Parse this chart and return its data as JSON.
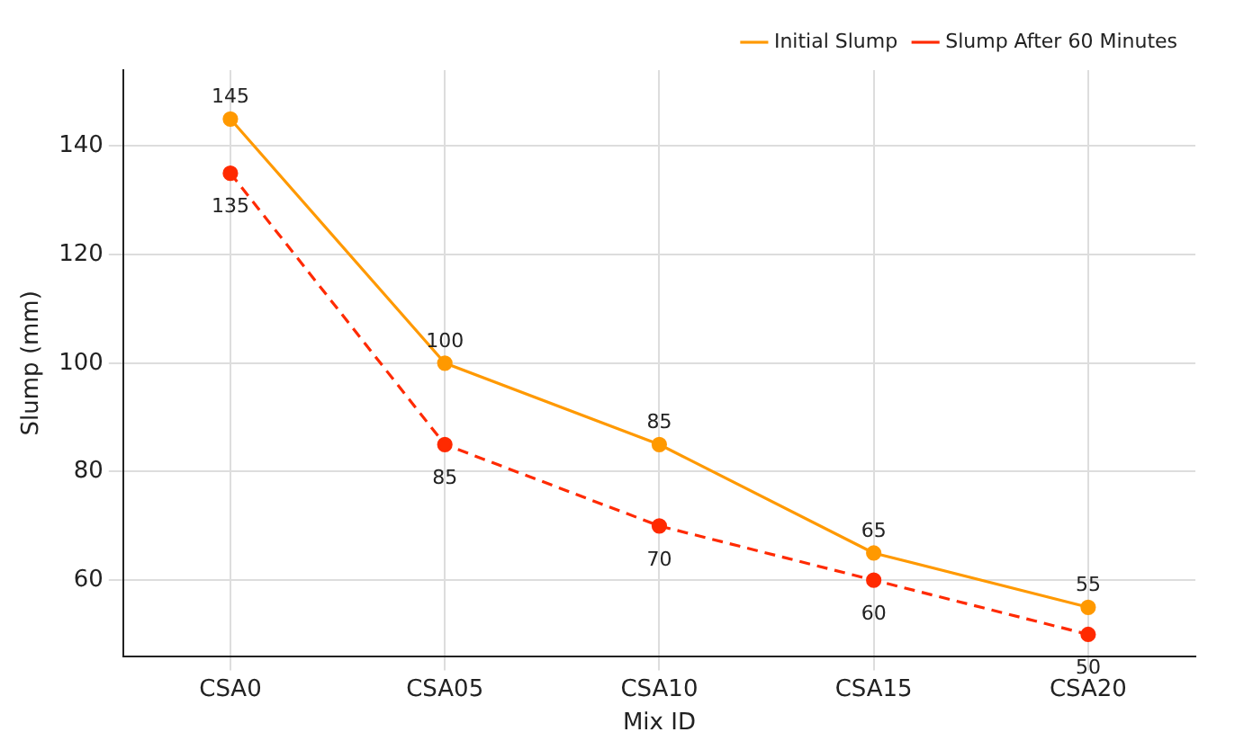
{
  "chart_data": {
    "type": "line",
    "xlabel": "Mix ID",
    "ylabel": "Slump (mm)",
    "categories": [
      "CSA0",
      "CSA05",
      "CSA10",
      "CSA15",
      "CSA20"
    ],
    "series": [
      {
        "name": "Initial Slump",
        "color": "#ff9900",
        "values": [
          145,
          100,
          85,
          65,
          55
        ],
        "line_style": "solid"
      },
      {
        "name": "Slump After 60 Minutes",
        "color": "#ff2a00",
        "values": [
          135,
          85,
          70,
          60,
          50
        ],
        "line_style": "dashed"
      }
    ],
    "ylim": [
      46,
      154
    ],
    "yticks": [
      60,
      80,
      100,
      120,
      140
    ],
    "grid": true,
    "legend": "top right",
    "marker": "circle",
    "data_labels": true
  }
}
